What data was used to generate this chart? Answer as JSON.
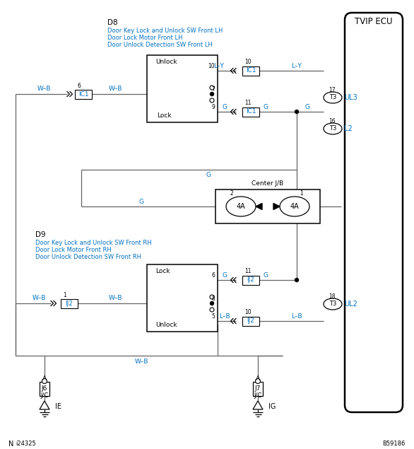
{
  "bg_color": "#ffffff",
  "border_color": "#000000",
  "wire_color": "#646464",
  "blue": "#0070C0",
  "black": "#000000",
  "fig_width": 5.86,
  "fig_height": 6.35,
  "dpi": 100,
  "title": "TVIP ECU",
  "d8_label": "D8",
  "d8_line1": "Door Key Lock and Unlock SW Front LH",
  "d8_line2": "Door Lock Motor Front LH",
  "d8_line3": "Door Unlock Detection SW Front LH",
  "d9_label": "D9",
  "d9_line1": "Door Key Lock and Unlock SW Front RH",
  "d9_line2": "Door Lock Motor Front RH",
  "d9_line3": "Door Unlock Detection SW Front RH",
  "cjb_label": "Center J/B",
  "bottom_left": "N",
  "bottom_left_id": "i24325",
  "bottom_right_id": "B59186"
}
